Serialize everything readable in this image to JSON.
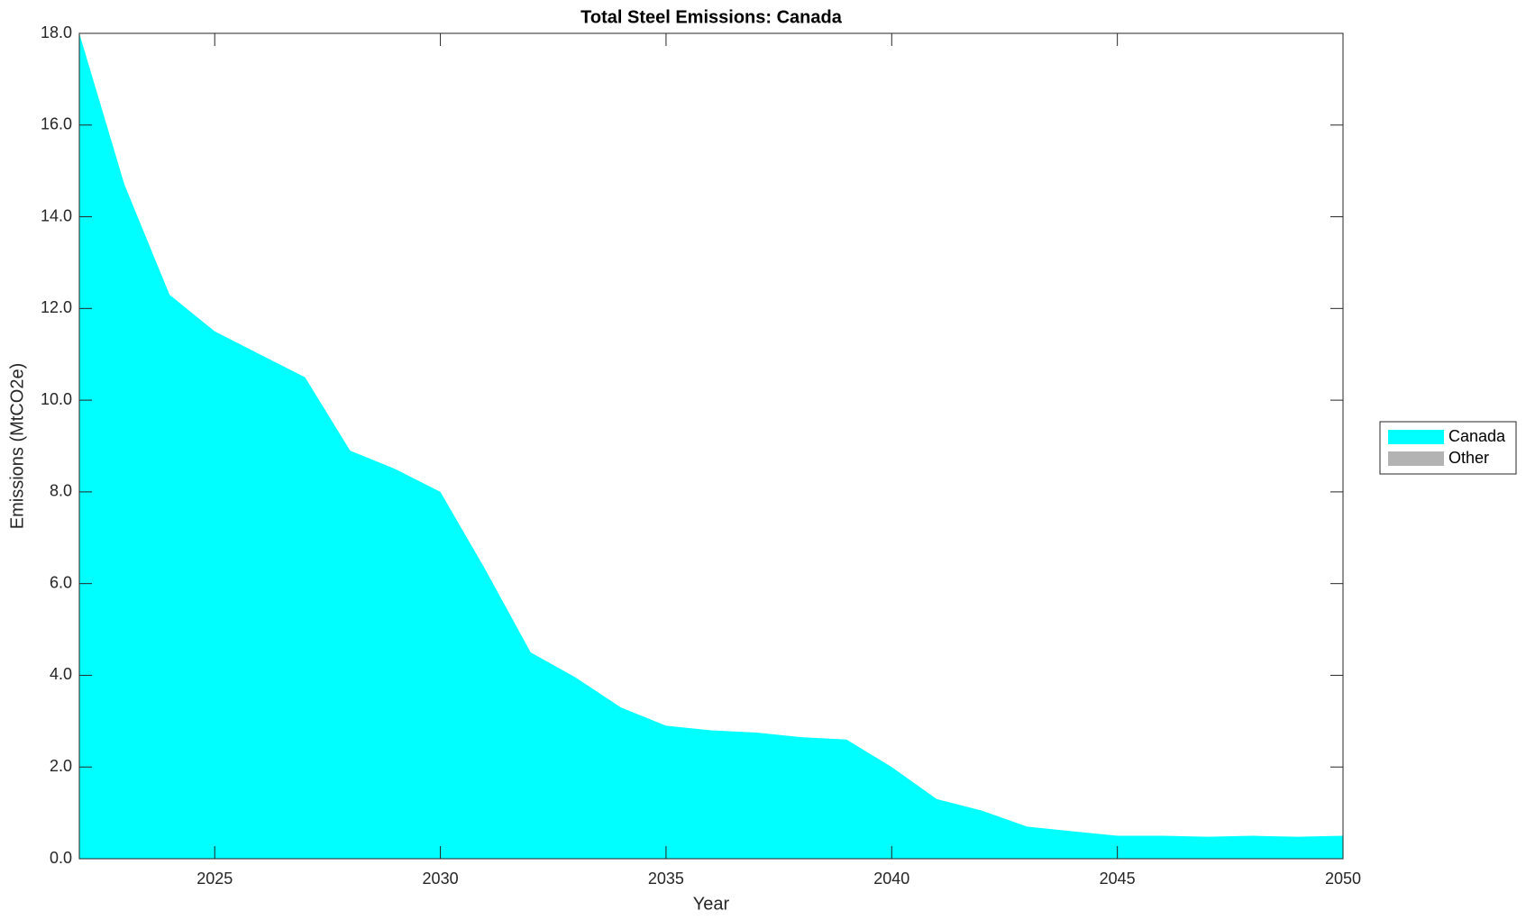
{
  "chart_data": {
    "type": "stacked_area",
    "title": "Total Steel Emissions: Canada",
    "x_label": "Year",
    "y_label": "Emissions (MtCO2e)",
    "x": [
      2022,
      2023,
      2024,
      2025,
      2026,
      2027,
      2028,
      2029,
      2030,
      2031,
      2032,
      2033,
      2034,
      2035,
      2036,
      2037,
      2038,
      2039,
      2040,
      2041,
      2042,
      2043,
      2044,
      2045,
      2046,
      2047,
      2048,
      2049,
      2050
    ],
    "series": [
      {
        "name": "Canada",
        "color": "#00ffff",
        "values": [
          18.0,
          14.7,
          12.3,
          11.5,
          11.0,
          10.5,
          8.9,
          8.5,
          8.0,
          6.3,
          4.5,
          3.95,
          3.3,
          2.9,
          2.8,
          2.75,
          2.65,
          2.6,
          2.0,
          1.3,
          1.05,
          0.7,
          0.6,
          0.5,
          0.5,
          0.48,
          0.5,
          0.48,
          0.5
        ]
      },
      {
        "name": "Other",
        "color": "#b3b3b3",
        "values": [
          0,
          0,
          0,
          0,
          0,
          0,
          0,
          0,
          0,
          0,
          0,
          0,
          0,
          0,
          0,
          0,
          0,
          0,
          0,
          0,
          0,
          0,
          0,
          0,
          0,
          0,
          0,
          0,
          0
        ]
      }
    ],
    "xlim": [
      2022,
      2050
    ],
    "xticks": [
      2025,
      2030,
      2035,
      2040,
      2045,
      2050
    ],
    "ylim": [
      0,
      18
    ],
    "yticks": [
      {
        "value": 0,
        "label": "0.0"
      },
      {
        "value": 2,
        "label": "2.0"
      },
      {
        "value": 4,
        "label": "4.0"
      },
      {
        "value": 6,
        "label": "6.0"
      },
      {
        "value": 8,
        "label": "8.0"
      },
      {
        "value": 10,
        "label": "10.0"
      },
      {
        "value": 12,
        "label": "12.0"
      },
      {
        "value": 14,
        "label": "14.0"
      },
      {
        "value": 16,
        "label": "16.0"
      },
      {
        "value": 18,
        "label": "18.0"
      }
    ],
    "legend": "right"
  }
}
